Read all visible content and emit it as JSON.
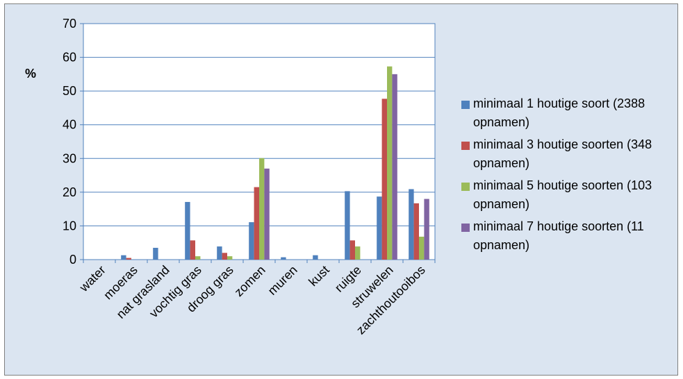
{
  "chart_data": {
    "type": "bar",
    "ylabel": "%",
    "ylim": [
      0,
      70
    ],
    "yticks": [
      0,
      10,
      20,
      30,
      40,
      50,
      60,
      70
    ],
    "grid": true,
    "legend_position": "right",
    "categories": [
      "water",
      "moeras",
      "nat grasland",
      "vochtig gras",
      "droog gras",
      "zomen",
      "muren",
      "kust",
      "ruigte",
      "struwelen",
      "zachthoutooibos"
    ],
    "series": [
      {
        "name": "minimaal 1 houtige soort (2388 opnamen)",
        "color": "#4f81bd",
        "values": [
          0.1,
          1.3,
          3.5,
          17.1,
          3.9,
          11.1,
          0.7,
          1.3,
          20.3,
          18.7,
          20.9
        ]
      },
      {
        "name": "minimaal 3 houtige soorten (348 opnamen)",
        "color": "#c0504d",
        "values": [
          0,
          0.5,
          0,
          5.7,
          2.0,
          21.5,
          0,
          0,
          5.7,
          47.7,
          16.7
        ]
      },
      {
        "name": "minimaal 5 houtige soorten (103 opnamen)",
        "color": "#9bbb59",
        "values": [
          0,
          0,
          0,
          1.0,
          1.0,
          30.1,
          0,
          0,
          3.9,
          57.3,
          6.8
        ]
      },
      {
        "name": "minimaal 7 houtige soorten (11 opnamen)",
        "color": "#8064a2",
        "values": [
          0,
          0,
          0,
          0,
          0,
          27.0,
          0,
          0,
          0,
          55.0,
          18.0
        ]
      }
    ]
  }
}
